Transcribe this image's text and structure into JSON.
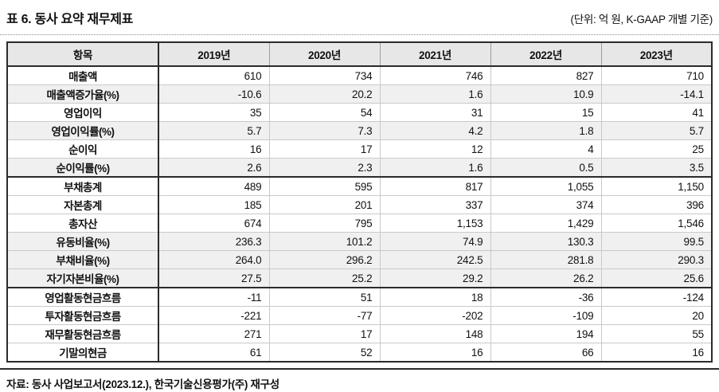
{
  "header": {
    "title": "표 6. 동사 요약 재무제표",
    "unit_note": "(단위: 억 원, K-GAAP 개별 기준)"
  },
  "table": {
    "columns": [
      "항목",
      "2019년",
      "2020년",
      "2021년",
      "2022년",
      "2023년"
    ],
    "rows": [
      {
        "label": "매출액",
        "values": [
          "610",
          "734",
          "746",
          "827",
          "710"
        ],
        "shaded": false,
        "section_end": false
      },
      {
        "label": "매출액증가율(%)",
        "values": [
          "-10.6",
          "20.2",
          "1.6",
          "10.9",
          "-14.1"
        ],
        "shaded": true,
        "section_end": false
      },
      {
        "label": "영업이익",
        "values": [
          "35",
          "54",
          "31",
          "15",
          "41"
        ],
        "shaded": false,
        "section_end": false
      },
      {
        "label": "영업이익률(%)",
        "values": [
          "5.7",
          "7.3",
          "4.2",
          "1.8",
          "5.7"
        ],
        "shaded": true,
        "section_end": false
      },
      {
        "label": "순이익",
        "values": [
          "16",
          "17",
          "12",
          "4",
          "25"
        ],
        "shaded": false,
        "section_end": false
      },
      {
        "label": "순이익률(%)",
        "values": [
          "2.6",
          "2.3",
          "1.6",
          "0.5",
          "3.5"
        ],
        "shaded": true,
        "section_end": true
      },
      {
        "label": "부채총계",
        "values": [
          "489",
          "595",
          "817",
          "1,055",
          "1,150"
        ],
        "shaded": false,
        "section_end": false
      },
      {
        "label": "자본총계",
        "values": [
          "185",
          "201",
          "337",
          "374",
          "396"
        ],
        "shaded": false,
        "section_end": false
      },
      {
        "label": "총자산",
        "values": [
          "674",
          "795",
          "1,153",
          "1,429",
          "1,546"
        ],
        "shaded": false,
        "section_end": false
      },
      {
        "label": "유동비율(%)",
        "values": [
          "236.3",
          "101.2",
          "74.9",
          "130.3",
          "99.5"
        ],
        "shaded": true,
        "section_end": false
      },
      {
        "label": "부채비율(%)",
        "values": [
          "264.0",
          "296.2",
          "242.5",
          "281.8",
          "290.3"
        ],
        "shaded": true,
        "section_end": false
      },
      {
        "label": "자기자본비율(%)",
        "values": [
          "27.5",
          "25.2",
          "29.2",
          "26.2",
          "25.6"
        ],
        "shaded": true,
        "section_end": true
      },
      {
        "label": "영업활동현금흐름",
        "values": [
          "-11",
          "51",
          "18",
          "-36",
          "-124"
        ],
        "shaded": false,
        "section_end": false
      },
      {
        "label": "투자활동현금흐름",
        "values": [
          "-221",
          "-77",
          "-202",
          "-109",
          "20"
        ],
        "shaded": false,
        "section_end": false
      },
      {
        "label": "재무활동현금흐름",
        "values": [
          "271",
          "17",
          "148",
          "194",
          "55"
        ],
        "shaded": false,
        "section_end": false
      },
      {
        "label": "기말의현금",
        "values": [
          "61",
          "52",
          "16",
          "66",
          "16"
        ],
        "shaded": false,
        "section_end": false
      }
    ]
  },
  "footer": {
    "source": "자료: 동사 사업보고서(2023.12.), 한국기술신용평가(주) 재구성"
  },
  "colors": {
    "header_bg": "#e7e7e7",
    "stripe_bg": "#f0f0f0",
    "border_dark": "#2b2b2b",
    "border_light": "#c9c9c9"
  }
}
